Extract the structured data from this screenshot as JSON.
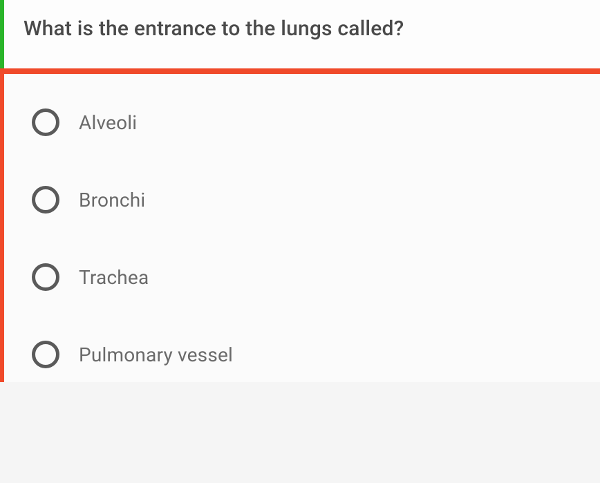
{
  "question": {
    "text": "What is the entrance to the lungs called?",
    "accent_color": "#2ab52a",
    "text_color": "#4a4a4a",
    "fontsize": 30
  },
  "divider": {
    "color": "#f04a2a",
    "height": 8
  },
  "answers": {
    "accent_color": "#f04a2a",
    "radio_border_color": "#5a5a5a",
    "label_color": "#6a6a6a",
    "label_fontsize": 28,
    "options": [
      {
        "label": "Alveoli",
        "selected": false
      },
      {
        "label": "Bronchi",
        "selected": false
      },
      {
        "label": "Trachea",
        "selected": false
      },
      {
        "label": "Pulmonary vessel",
        "selected": false
      }
    ]
  },
  "background_color": "#fbfbfb"
}
